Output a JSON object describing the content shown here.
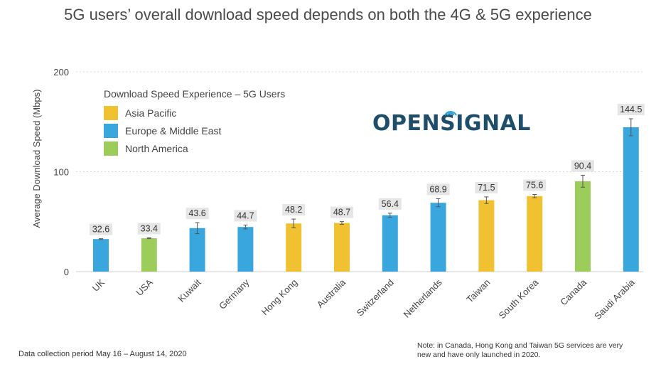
{
  "chart_data": {
    "type": "bar",
    "title": "5G users’ overall download speed depends on both the 4G & 5G experience",
    "ylabel": "Average Download Speed (Mbps)",
    "xlabel": "",
    "ylim": [
      0,
      200
    ],
    "yticks": [
      0,
      100,
      200
    ],
    "grid": true,
    "legend_title": "Download Speed Experience – 5G Users",
    "legend_position": "top-left",
    "regions": [
      {
        "name": "Asia Pacific",
        "color": "#f0c232"
      },
      {
        "name": "Europe & Middle East",
        "color": "#3aa6de"
      },
      {
        "name": "North America",
        "color": "#9ccc5a"
      }
    ],
    "categories": [
      "UK",
      "USA",
      "Kuwait",
      "Germany",
      "Hong Kong",
      "Australia",
      "Switzerland",
      "Netherlands",
      "Taiwan",
      "South Korea",
      "Canada",
      "Saudi Arabia"
    ],
    "values": [
      32.6,
      33.4,
      43.6,
      44.7,
      48.2,
      48.7,
      56.4,
      68.9,
      71.5,
      75.6,
      90.4,
      144.5
    ],
    "value_labels": [
      "32.6",
      "33.4",
      "43.6",
      "44.7",
      "48.2",
      "48.7",
      "56.4",
      "68.9",
      "71.5",
      "75.6",
      "90.4",
      "144.5"
    ],
    "region_of_bar": [
      "Europe & Middle East",
      "North America",
      "Europe & Middle East",
      "Europe & Middle East",
      "Asia Pacific",
      "Asia Pacific",
      "Europe & Middle East",
      "Europe & Middle East",
      "Asia Pacific",
      "Asia Pacific",
      "North America",
      "Europe & Middle East"
    ],
    "error_low": [
      32.2,
      33.0,
      38.0,
      42.8,
      44.0,
      47.3,
      54.4,
      65.0,
      68.2,
      74.0,
      84.5,
      136.0
    ],
    "error_high": [
      33.0,
      33.8,
      49.0,
      46.6,
      52.6,
      50.1,
      58.5,
      73.0,
      74.8,
      77.2,
      96.5,
      153.0
    ]
  },
  "branding": {
    "logo_text": "OPENSIGNAL"
  },
  "footnotes": {
    "collection_period": "Data collection period May 16 – August 14, 2020",
    "note": "Note: in Canada, Hong Kong and Taiwan 5G services are very new and have only launched in 2020."
  }
}
